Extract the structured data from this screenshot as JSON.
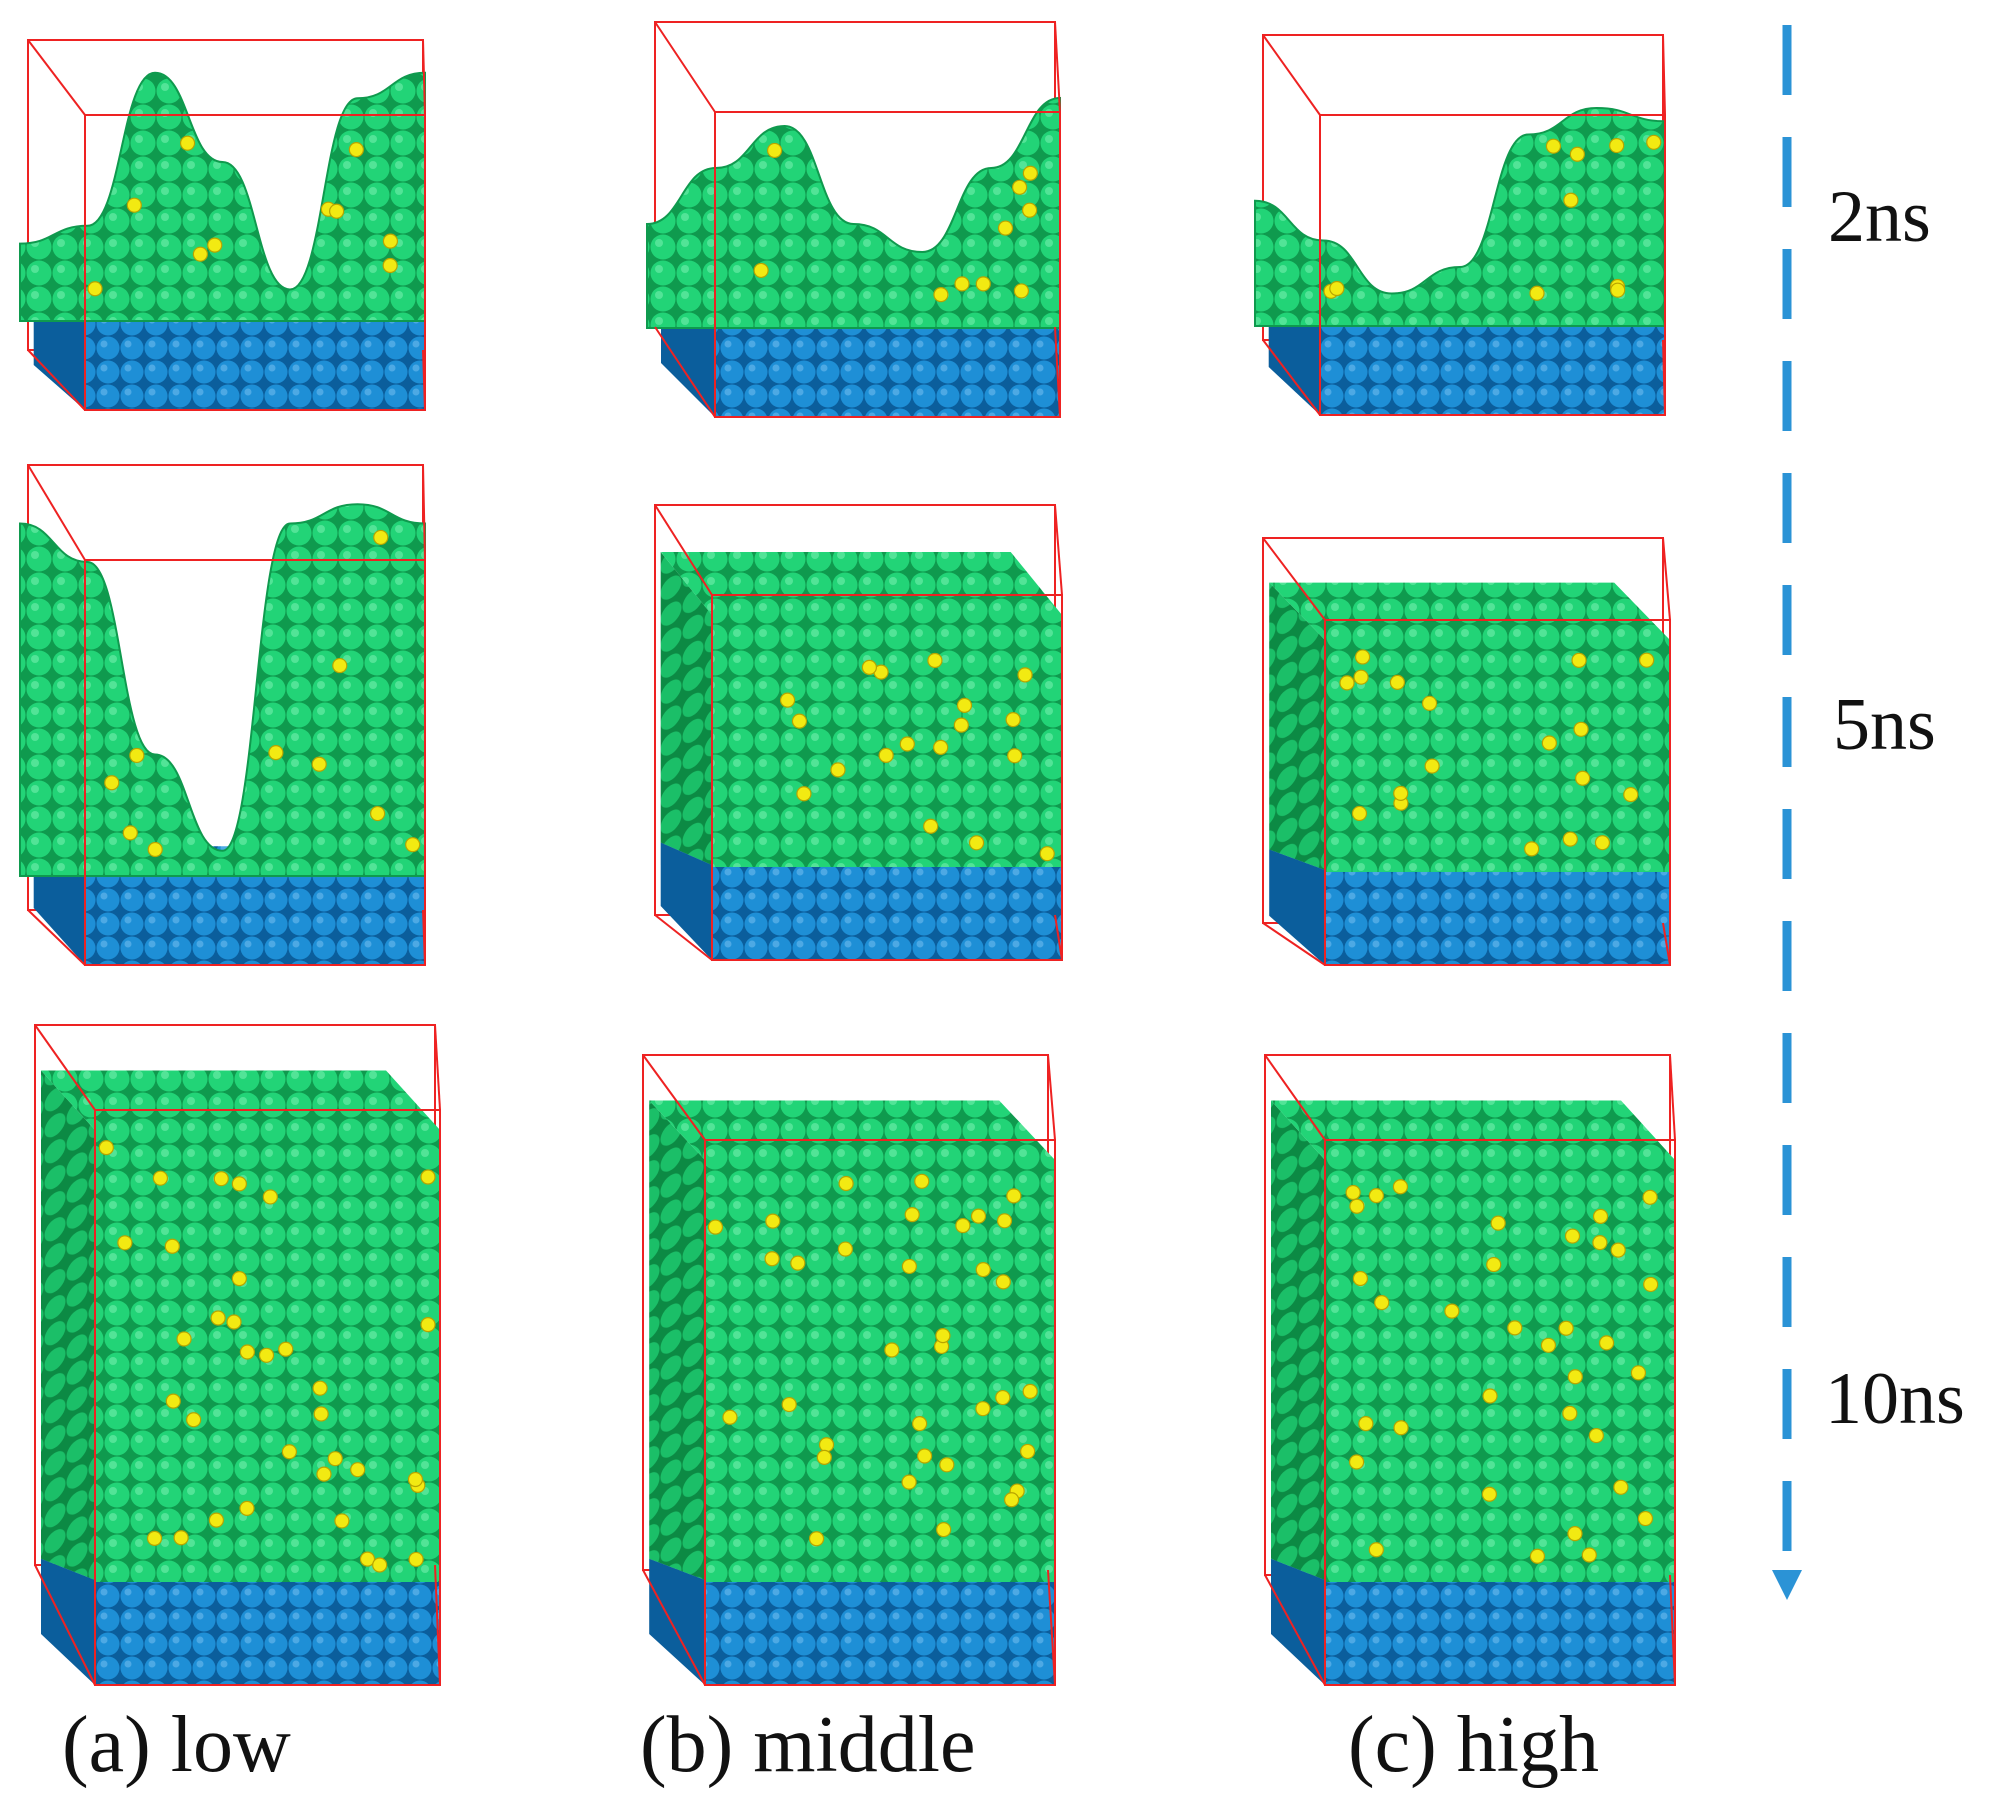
{
  "figure": {
    "columns": [
      {
        "id": "low",
        "label": "(a) low"
      },
      {
        "id": "middle",
        "label": "(b) middle"
      },
      {
        "id": "high",
        "label": "(c) high"
      }
    ],
    "time_steps": [
      {
        "id": "t2",
        "label": "2ns"
      },
      {
        "id": "t5",
        "label": "5ns"
      },
      {
        "id": "t10",
        "label": "10ns"
      }
    ],
    "colors": {
      "box_edge": "#ee2222",
      "green_atom": "#22d477",
      "green_atom_dark": "#0f9a4e",
      "yellow_atom": "#f2ea12",
      "blue_atom": "#1e8fd6",
      "blue_atom_dark": "#0b5e9c",
      "time_arrow": "#2b93d6"
    },
    "icons": {
      "time_arrow": "dashed-down-arrow-icon"
    }
  }
}
